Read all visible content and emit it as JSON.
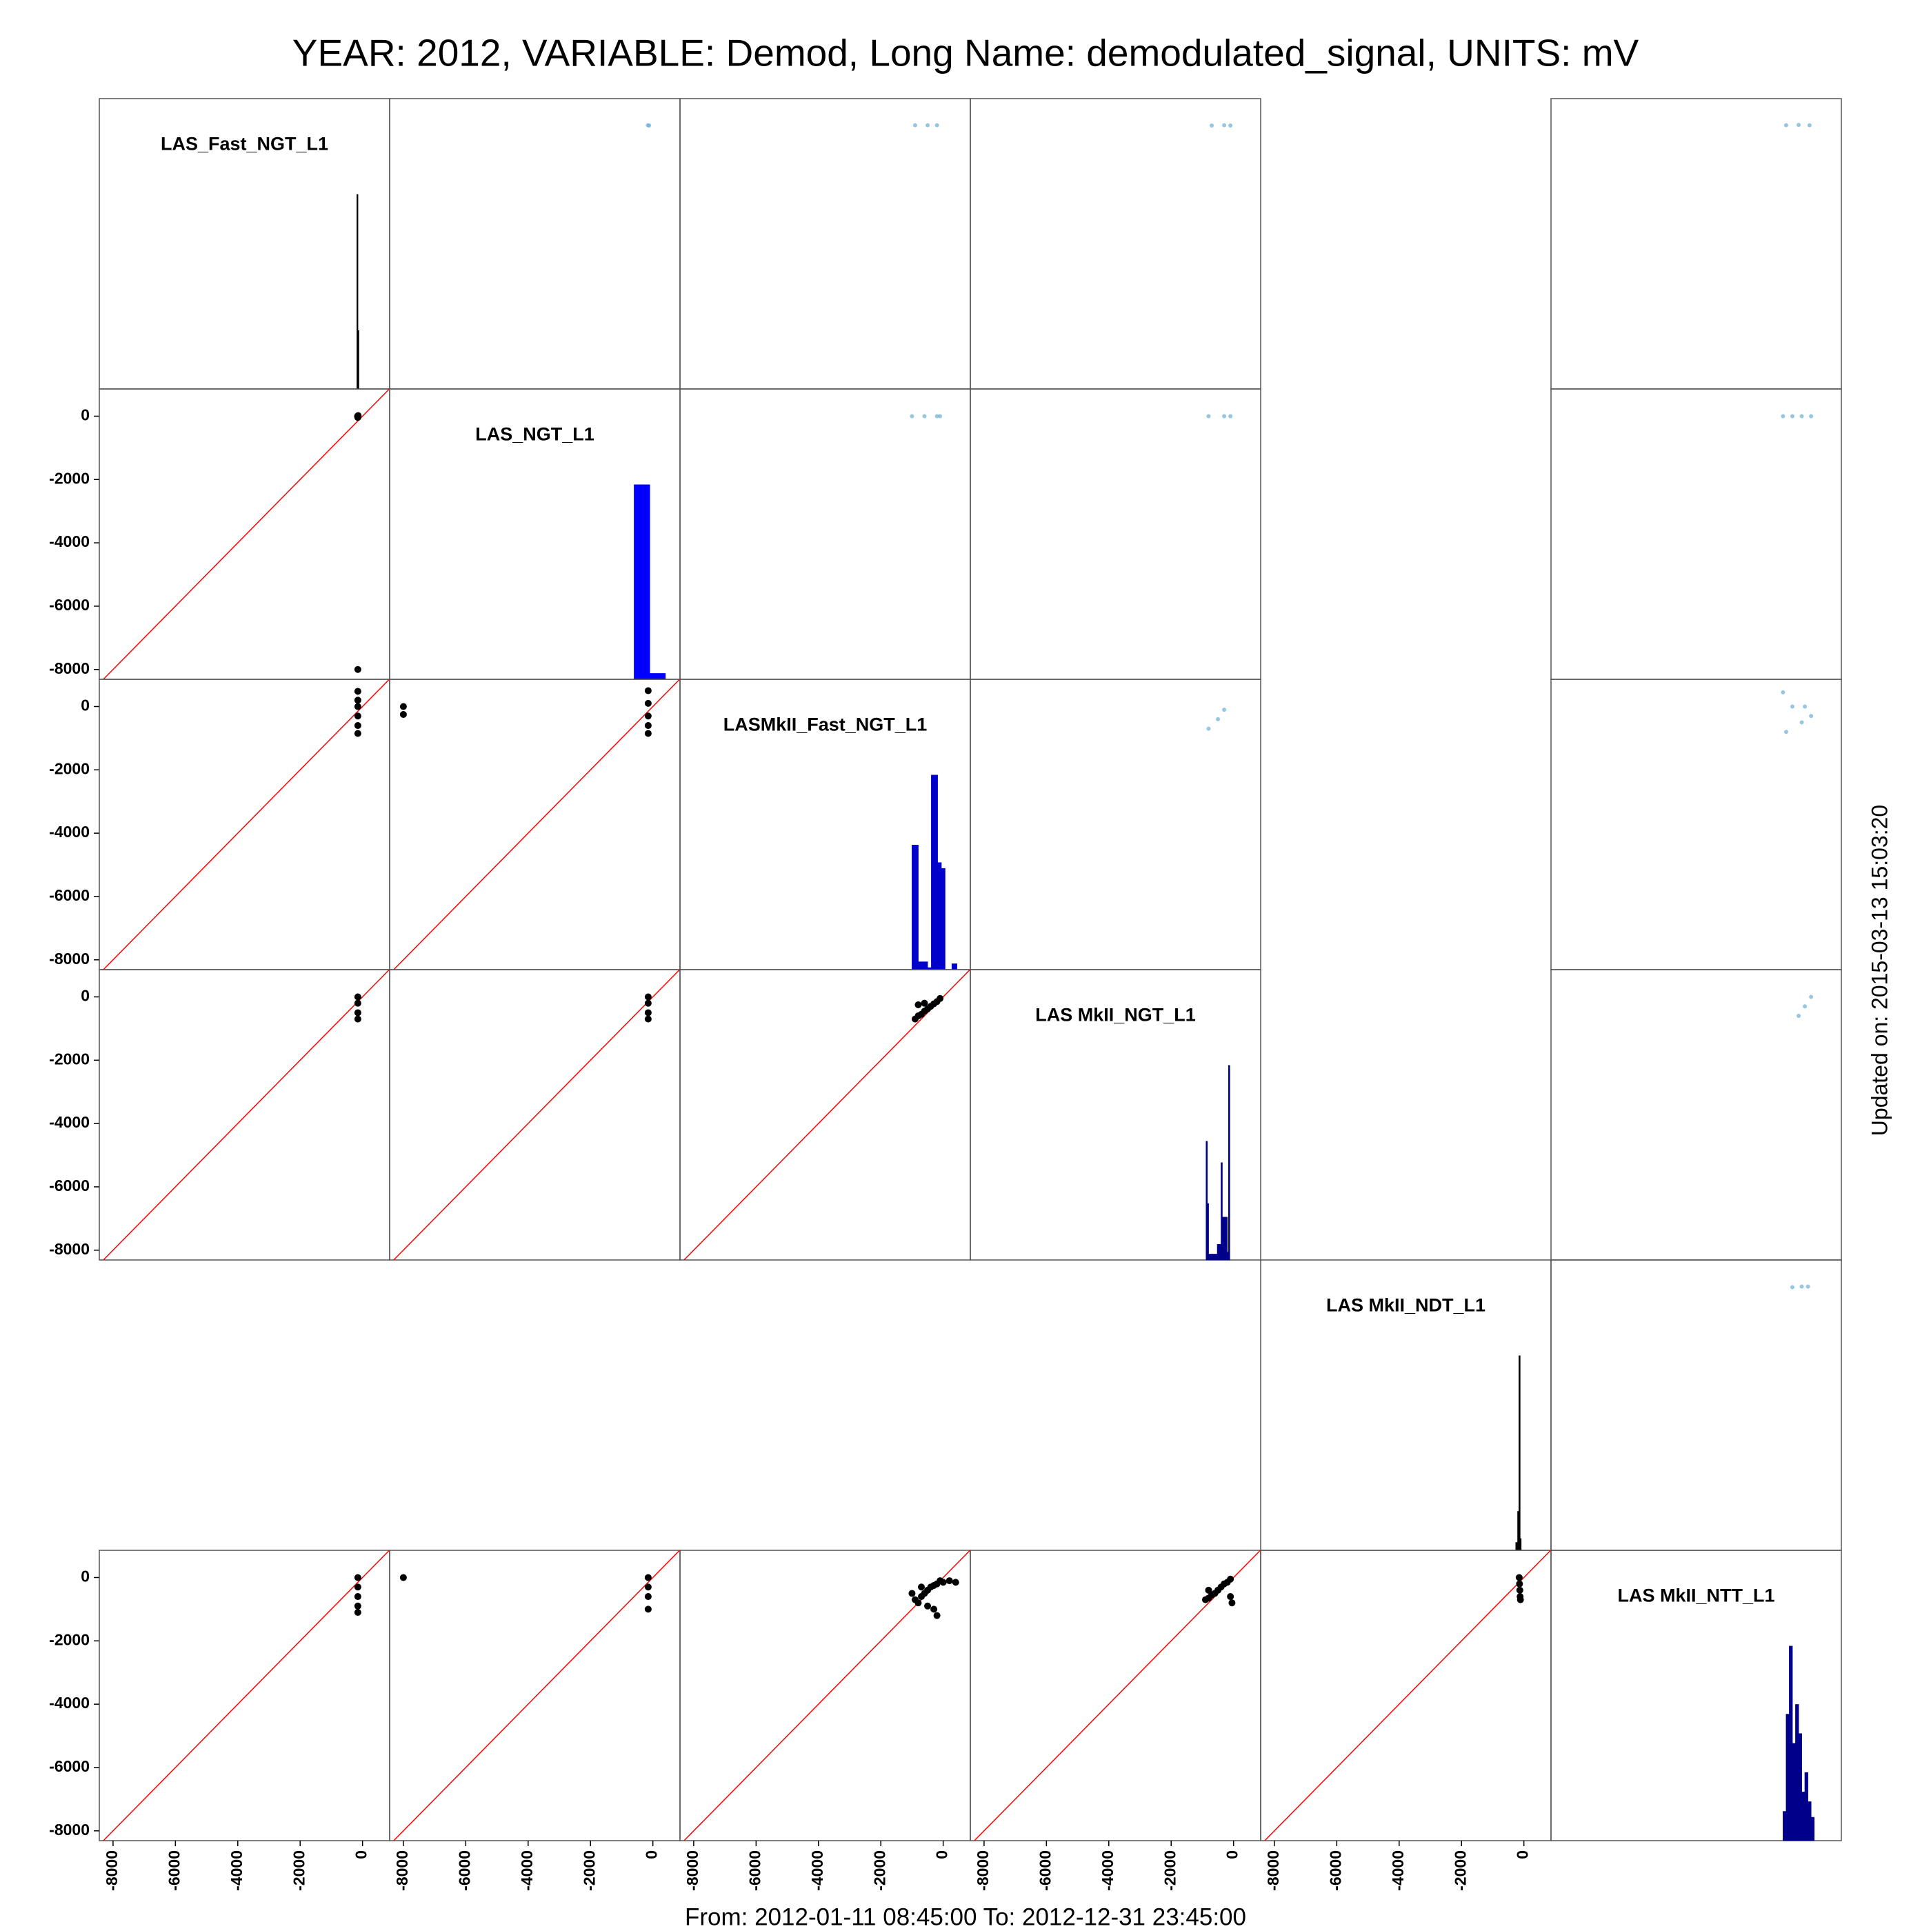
{
  "chart_data": {
    "type": "pairs",
    "title": "YEAR: 2012, VARIABLE: Demod, Long Name: demodulated_signal, UNITS: mV",
    "footer": "From: 2012-01-11 08:45:00 To: 2012-12-31 23:45:00",
    "side_note": "Updated on: 2015-03-13 15:03:20",
    "variables": [
      "LAS_Fast_NGT_L1",
      "LAS_NGT_L1",
      "LASMkII_Fast_NGT_L1",
      "LAS MkII_NGT_L1",
      "LAS MkII_NDT_L1",
      "LAS MkII_NTT_L1"
    ],
    "xlim": [
      -8440,
      870
    ],
    "ylim": [
      -8310,
      860
    ],
    "xticks": [
      -8000,
      -6000,
      -4000,
      -2000,
      0
    ],
    "yticks": [
      -8000,
      -6000,
      -4000,
      -2000,
      0
    ],
    "identity_line": true,
    "line_color": "#ff0000",
    "scatter_color": "#000000",
    "density_color": "#6aaed6",
    "histograms": [
      {
        "bins": [
          -180,
          -150,
          -120
        ],
        "counts": [
          100,
          30
        ],
        "color": "#000000"
      },
      {
        "bins": [
          -600,
          -100,
          400
        ],
        "counts": [
          100,
          3
        ],
        "color": "#0000ff"
      },
      {
        "bins": [
          -1000,
          -800,
          -500,
          -380,
          -180,
          -60,
          60,
          280,
          440
        ],
        "counts": [
          64,
          4,
          1,
          100,
          55,
          52,
          0,
          3
        ],
        "color": "#0000cc"
      },
      {
        "bins": [
          -880,
          -840,
          -800,
          -520,
          -400,
          -360,
          -200,
          -160,
          -120
        ],
        "counts": [
          61,
          29,
          3,
          8,
          50,
          22,
          4,
          100
        ],
        "color": "#00008b"
      },
      {
        "bins": [
          -260,
          -200,
          -160,
          -120,
          -100
        ],
        "counts": [
          4,
          20,
          100,
          6
        ],
        "color": "#000000"
      },
      {
        "bins": [
          -1000,
          -900,
          -800,
          -700,
          -600,
          -500,
          -400,
          -300,
          -200,
          -100,
          0
        ],
        "counts": [
          15,
          65,
          100,
          50,
          70,
          55,
          25,
          35,
          20,
          12
        ],
        "color": "#00008b"
      }
    ],
    "panels": [
      [
        null,
        {
          "x": [
            -160,
            -120
          ],
          "y": [
            20,
            10
          ]
        },
        {
          "x": [
            -900,
            -500,
            -200
          ],
          "y": [
            20,
            20,
            20
          ]
        },
        {
          "x": [
            -700,
            -300,
            -100
          ],
          "y": [
            10,
            20,
            10
          ]
        },
        null,
        {
          "x": [
            -900,
            -500,
            -150
          ],
          "y": [
            20,
            30,
            20
          ]
        }
      ],
      [
        {
          "x": [
            -160,
            -150,
            -140,
            -150
          ],
          "y": [
            0,
            -40,
            20,
            -8000
          ]
        },
        null,
        {
          "x": [
            -1000,
            -600,
            -200,
            -100
          ],
          "y": [
            0,
            0,
            0,
            0
          ]
        },
        {
          "x": [
            -800,
            -300,
            -100
          ],
          "y": [
            0,
            0,
            0
          ]
        },
        null,
        {
          "x": [
            -1000,
            -700,
            -400,
            -100
          ],
          "y": [
            0,
            0,
            0,
            0
          ]
        }
      ],
      [
        {
          "x": [
            -150,
            -150,
            -150,
            -150,
            -150,
            -150
          ],
          "y": [
            480,
            200,
            0,
            -300,
            -600,
            -850
          ]
        },
        {
          "x": [
            -8000,
            -8000,
            -150,
            -150,
            -150,
            -150,
            -150
          ],
          "y": [
            0,
            -250,
            500,
            100,
            -300,
            -600,
            -850
          ]
        },
        null,
        {
          "x": [
            -800,
            -500,
            -300
          ],
          "y": [
            -700,
            -400,
            -100
          ]
        },
        null,
        {
          "x": [
            -1000,
            -700,
            -300,
            -100,
            -400,
            -900
          ],
          "y": [
            450,
            0,
            0,
            -300,
            -500,
            -800
          ]
        }
      ],
      [
        {
          "x": [
            -150,
            -150,
            -150,
            -150
          ],
          "y": [
            0,
            -200,
            -500,
            -700
          ]
        },
        {
          "x": [
            -150,
            -150,
            -150,
            -150
          ],
          "y": [
            0,
            -200,
            -500,
            -700
          ]
        },
        {
          "x": [
            -900,
            -800,
            -700,
            -600,
            -500,
            -400,
            -300,
            -200,
            -100,
            -800,
            -600
          ],
          "y": [
            -700,
            -600,
            -550,
            -450,
            -380,
            -300,
            -220,
            -150,
            -50,
            -250,
            -200
          ]
        },
        null,
        null,
        {
          "x": [
            -500,
            -300,
            -100
          ],
          "y": [
            -600,
            -300,
            0
          ]
        }
      ],
      [
        null,
        null,
        null,
        null,
        null,
        {
          "x": [
            -700,
            -400,
            -200
          ],
          "y": [
            0,
            20,
            20
          ]
        }
      ],
      [
        {
          "x": [
            -150,
            -150,
            -150,
            -150,
            -150
          ],
          "y": [
            0,
            -300,
            -600,
            -900,
            -1100
          ]
        },
        {
          "x": [
            -8000,
            -150,
            -150,
            -150,
            -150
          ],
          "y": [
            0,
            0,
            -300,
            -600,
            -1000
          ]
        },
        {
          "x": [
            -1000,
            -900,
            -800,
            -700,
            -600,
            -500,
            -400,
            -300,
            -200,
            -100,
            0,
            200,
            400,
            -300,
            -200,
            -700,
            -500
          ],
          "y": [
            -500,
            -700,
            -800,
            -600,
            -500,
            -400,
            -300,
            -250,
            -200,
            -100,
            -150,
            -100,
            -150,
            -1000,
            -1200,
            -300,
            -900
          ]
        },
        {
          "x": [
            -900,
            -800,
            -700,
            -600,
            -500,
            -400,
            -300,
            -200,
            -100,
            -100,
            -50,
            -800
          ],
          "y": [
            -700,
            -650,
            -550,
            -500,
            -400,
            -300,
            -200,
            -150,
            -50,
            -600,
            -800,
            -400
          ]
        },
        {
          "x": [
            -150,
            -140,
            -130,
            -120,
            -110
          ],
          "y": [
            0,
            -200,
            -400,
            -600,
            -700
          ]
        },
        null
      ]
    ]
  }
}
